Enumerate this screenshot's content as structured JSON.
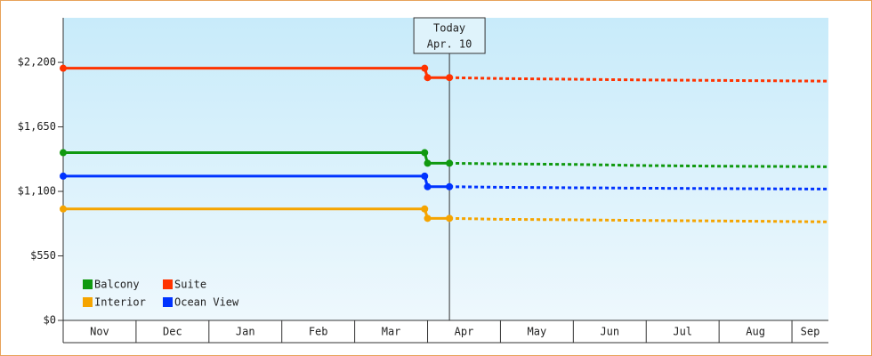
{
  "chart_data": {
    "type": "line",
    "xlim": [
      0,
      10.5
    ],
    "xticks": [
      {
        "value": 0,
        "label": "Nov"
      },
      {
        "value": 1,
        "label": "Dec"
      },
      {
        "value": 2,
        "label": "Jan"
      },
      {
        "value": 3,
        "label": "Feb"
      },
      {
        "value": 4,
        "label": "Mar"
      },
      {
        "value": 5,
        "label": "Apr"
      },
      {
        "value": 6,
        "label": "May"
      },
      {
        "value": 7,
        "label": "Jun"
      },
      {
        "value": 8,
        "label": "Jul"
      },
      {
        "value": 9,
        "label": "Aug"
      },
      {
        "value": 10,
        "label": "Sep"
      }
    ],
    "ylim": [
      0,
      2580
    ],
    "yticks": [
      {
        "value": 0,
        "label": "$0"
      },
      {
        "value": 550,
        "label": "$550"
      },
      {
        "value": 1100,
        "label": "$1,100"
      },
      {
        "value": 1650,
        "label": "$1,650"
      },
      {
        "value": 2200,
        "label": "$2,200"
      }
    ],
    "grid": false,
    "legend": "bottom-left",
    "today": {
      "label": "Today",
      "date": "Apr. 10",
      "x": 5.3
    },
    "x": [
      0,
      4.96,
      5.0,
      5.3,
      6,
      7,
      8,
      9,
      10,
      10.5
    ],
    "series": [
      {
        "name": "Balcony",
        "color": "#109910",
        "values": [
          1430,
          1430,
          1340,
          1340,
          1335,
          1330,
          1320,
          1315,
          1312,
          1310
        ]
      },
      {
        "name": "Suite",
        "color": "#ff3300",
        "values": [
          2150,
          2150,
          2070,
          2070,
          2062,
          2056,
          2050,
          2046,
          2042,
          2040
        ]
      },
      {
        "name": "Interior",
        "color": "#f5a400",
        "values": [
          950,
          950,
          870,
          870,
          862,
          858,
          852,
          848,
          843,
          840
        ]
      },
      {
        "name": "Ocean View",
        "color": "#0033ff",
        "values": [
          1230,
          1230,
          1140,
          1140,
          1135,
          1131,
          1127,
          1124,
          1121,
          1120
        ]
      }
    ]
  }
}
